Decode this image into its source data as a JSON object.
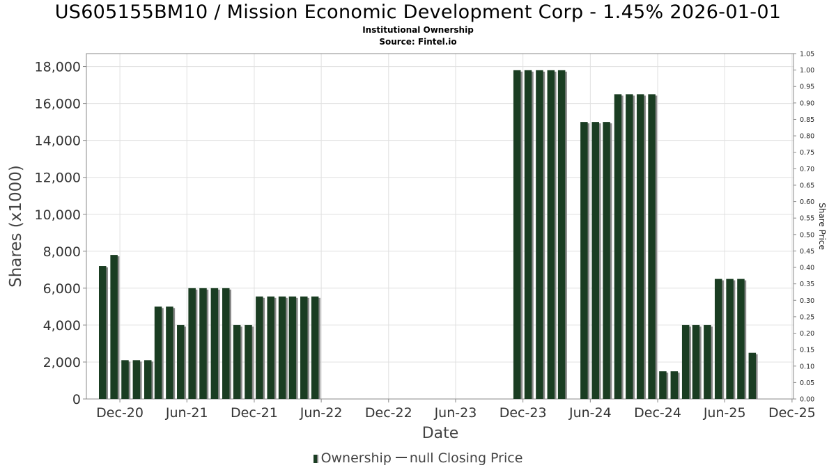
{
  "header": {
    "title": "US605155BM10 / Mission Economic Development Corp - 1.45% 2026-01-01",
    "subtitle_1": "Institutional Ownership",
    "subtitle_2": "Source: Fintel.io"
  },
  "legend": {
    "ownership_label": "Ownership",
    "price_label": "null Closing Price"
  },
  "colors": {
    "bar_fill": "#1a3d22",
    "bar_shadow": "#8a8a8a",
    "grid": "#e0e0e0",
    "axis": "#888888"
  },
  "chart_data": {
    "type": "bar",
    "xlabel": "Date",
    "ylabel": "Shares (x1000)",
    "y2label": "Share Price",
    "ylim": [
      0,
      18700
    ],
    "y2lim": [
      0,
      1.05
    ],
    "xlim": [
      "2020-09-01",
      "2025-12-05"
    ],
    "grid": true,
    "legend_position": "bottom",
    "y_ticks": [
      "0",
      "2,000",
      "4,000",
      "6,000",
      "8,000",
      "10,000",
      "12,000",
      "14,000",
      "16,000",
      "18,000"
    ],
    "y2_ticks": [
      "0.00",
      "0.05",
      "0.10",
      "0.15",
      "0.20",
      "0.25",
      "0.30",
      "0.35",
      "0.40",
      "0.45",
      "0.50",
      "0.55",
      "0.60",
      "0.65",
      "0.70",
      "0.75",
      "0.80",
      "0.85",
      "0.90",
      "0.95",
      "1.00",
      "1.05"
    ],
    "x_ticks": [
      "Dec-20",
      "Jun-21",
      "Dec-21",
      "Jun-22",
      "Dec-22",
      "Jun-23",
      "Dec-23",
      "Jun-24",
      "Dec-24",
      "Jun-25",
      "Dec-25"
    ],
    "series": [
      {
        "name": "Ownership",
        "dates": [
          "2020-10-15",
          "2020-11-15",
          "2020-12-15",
          "2021-01-15",
          "2021-02-15",
          "2021-03-15",
          "2021-04-15",
          "2021-05-15",
          "2021-06-15",
          "2021-07-15",
          "2021-08-15",
          "2021-09-15",
          "2021-10-15",
          "2021-11-15",
          "2021-12-15",
          "2022-01-15",
          "2022-02-15",
          "2022-03-15",
          "2022-04-15",
          "2022-05-15",
          "2023-11-15",
          "2023-12-15",
          "2024-01-15",
          "2024-02-15",
          "2024-03-15",
          "2024-05-15",
          "2024-06-15",
          "2024-07-15",
          "2024-08-15",
          "2024-09-15",
          "2024-10-15",
          "2024-11-15",
          "2024-12-15",
          "2025-01-15",
          "2025-02-15",
          "2025-03-15",
          "2025-04-15",
          "2025-05-15",
          "2025-06-15",
          "2025-07-15",
          "2025-08-15"
        ],
        "values": [
          7200,
          7800,
          2100,
          2100,
          2100,
          5000,
          5000,
          4000,
          6000,
          6000,
          6000,
          6000,
          4000,
          4000,
          5550,
          5550,
          5550,
          5550,
          5550,
          5550,
          17800,
          17800,
          17800,
          17800,
          17800,
          15000,
          15000,
          15000,
          16500,
          16500,
          16500,
          16500,
          1500,
          1500,
          4000,
          4000,
          4000,
          6500,
          6500,
          6500,
          2500
        ]
      }
    ]
  }
}
